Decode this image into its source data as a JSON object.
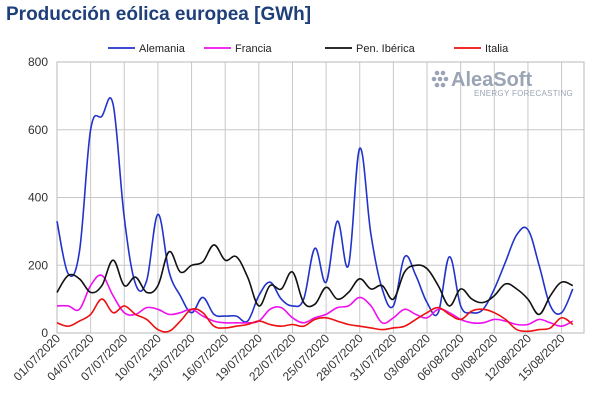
{
  "chart_data": {
    "type": "line",
    "title": "Producción eólica europea [GWh]",
    "xlabel": "",
    "ylabel": "",
    "ylim": [
      0,
      800
    ],
    "yticks": [
      0,
      200,
      400,
      600,
      800
    ],
    "grid": true,
    "legend_position": "top",
    "x": [
      "01/07/2020",
      "02/07/2020",
      "03/07/2020",
      "04/07/2020",
      "05/07/2020",
      "06/07/2020",
      "07/07/2020",
      "08/07/2020",
      "09/07/2020",
      "10/07/2020",
      "11/07/2020",
      "12/07/2020",
      "13/07/2020",
      "14/07/2020",
      "15/07/2020",
      "16/07/2020",
      "17/07/2020",
      "18/07/2020",
      "19/07/2020",
      "20/07/2020",
      "21/07/2020",
      "22/07/2020",
      "23/07/2020",
      "24/07/2020",
      "25/07/2020",
      "26/07/2020",
      "27/07/2020",
      "28/07/2020",
      "29/07/2020",
      "30/07/2020",
      "31/07/2020",
      "01/08/2020",
      "02/08/2020",
      "03/08/2020",
      "04/08/2020",
      "05/08/2020",
      "06/08/2020",
      "07/08/2020",
      "08/08/2020",
      "09/08/2020",
      "10/08/2020",
      "11/08/2020",
      "12/08/2020",
      "13/08/2020",
      "14/08/2020",
      "15/08/2020",
      "16/08/2020",
      "17/08/2020"
    ],
    "xticks": [
      "01/07/2020",
      "04/07/2020",
      "07/07/2020",
      "10/07/2020",
      "13/07/2020",
      "16/07/2020",
      "19/07/2020",
      "22/07/2020",
      "25/07/2020",
      "28/07/2020",
      "31/07/2020",
      "03/08/2020",
      "06/08/2020",
      "09/08/2020",
      "12/08/2020",
      "15/08/2020"
    ],
    "series": [
      {
        "name": "Alemania",
        "color": "#2233cc",
        "values": [
          330,
          175,
          240,
          600,
          640,
          675,
          340,
          145,
          155,
          350,
          180,
          110,
          60,
          105,
          55,
          50,
          50,
          35,
          110,
          150,
          100,
          80,
          100,
          250,
          150,
          330,
          200,
          545,
          290,
          130,
          80,
          225,
          170,
          90,
          60,
          225,
          80,
          60,
          70,
          130,
          210,
          290,
          305,
          200,
          80,
          60,
          130,
          null
        ]
      },
      {
        "name": "Francia",
        "color": "#ee11ee",
        "values": [
          80,
          80,
          70,
          140,
          170,
          110,
          60,
          55,
          75,
          70,
          55,
          60,
          70,
          50,
          35,
          30,
          30,
          30,
          35,
          70,
          75,
          45,
          30,
          45,
          55,
          75,
          80,
          105,
          80,
          30,
          45,
          70,
          55,
          45,
          70,
          60,
          40,
          30,
          30,
          40,
          35,
          25,
          25,
          40,
          30,
          20,
          35,
          null
        ]
      },
      {
        "name": "Pen. Ibérica",
        "color": "#111111",
        "values": [
          120,
          170,
          160,
          120,
          140,
          215,
          140,
          165,
          120,
          140,
          240,
          180,
          200,
          210,
          260,
          215,
          225,
          165,
          80,
          140,
          130,
          180,
          90,
          85,
          135,
          100,
          120,
          160,
          130,
          140,
          100,
          180,
          200,
          190,
          140,
          80,
          130,
          100,
          90,
          110,
          145,
          130,
          100,
          55,
          110,
          150,
          140,
          null
        ]
      },
      {
        "name": "Italia",
        "color": "#ee1111",
        "values": [
          30,
          20,
          35,
          55,
          100,
          60,
          80,
          55,
          40,
          10,
          5,
          35,
          70,
          60,
          20,
          15,
          20,
          25,
          35,
          25,
          20,
          25,
          20,
          40,
          45,
          35,
          25,
          20,
          15,
          10,
          15,
          20,
          40,
          60,
          75,
          55,
          40,
          65,
          70,
          60,
          40,
          10,
          5,
          10,
          15,
          45,
          25,
          null
        ]
      }
    ]
  },
  "watermark": {
    "brand": "AleaSoft",
    "tagline": "ENERGY FORECASTING",
    "color": "#9aa4b4"
  }
}
